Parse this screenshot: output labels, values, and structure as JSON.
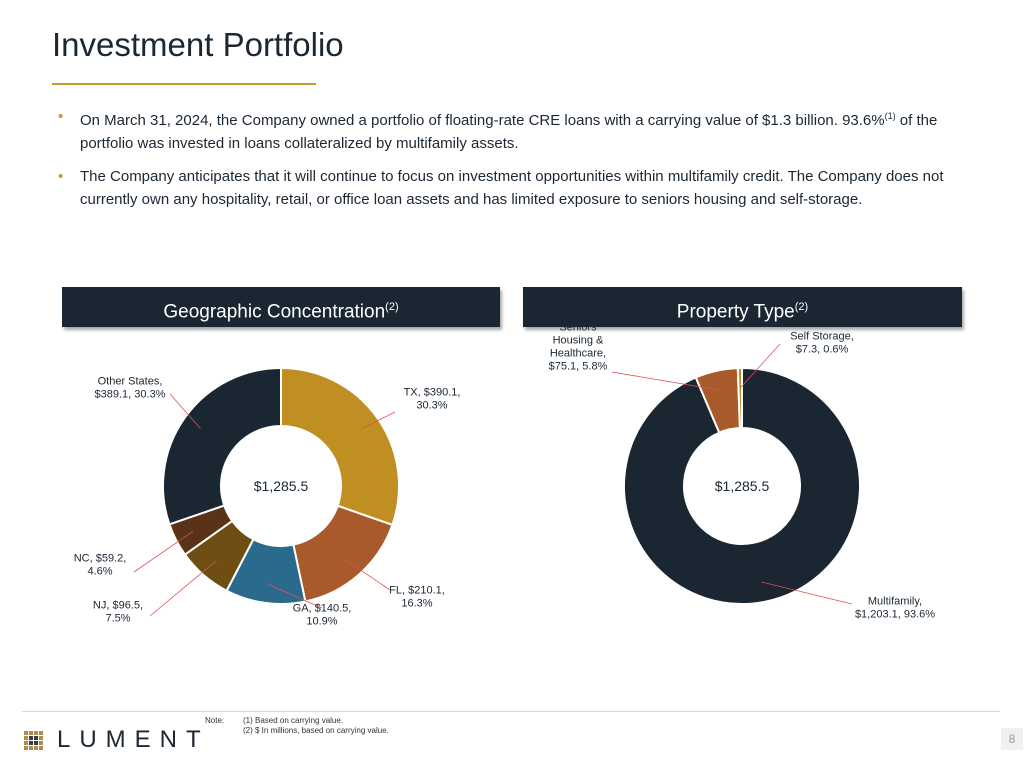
{
  "title": "Investment Portfolio",
  "bullets": {
    "b1_part1": "On March 31, 2024, the Company owned a portfolio of floating-rate CRE loans with a carrying value of $1.3 billion. 93.6%",
    "b1_sup": "(1)",
    "b1_part2": " of the portfolio was invested in loans collateralized by multifamily assets.",
    "b2": "The Company anticipates that it will continue to focus on investment opportunities within multifamily credit. The Company does not currently own any hospitality, retail, or office loan assets and has limited exposure to seniors housing and self-storage."
  },
  "panels": {
    "geo_title": "Geographic Concentration",
    "geo_sup": "(2)",
    "prop_title": "Property Type",
    "prop_sup": "(2)"
  },
  "chart_data": [
    {
      "type": "pie",
      "title": "Geographic Concentration",
      "center_label": "$1,285.5",
      "unit": "$ millions",
      "slices": [
        {
          "label": "TX",
          "value": 390.1,
          "percent": 30.3,
          "color": "#c08f24",
          "label_lines": [
            "TX, $390.1,",
            "30.3%"
          ]
        },
        {
          "label": "FL",
          "value": 210.1,
          "percent": 16.3,
          "color": "#a95a2a",
          "label_lines": [
            "FL, $210.1,",
            "16.3%"
          ]
        },
        {
          "label": "GA",
          "value": 140.5,
          "percent": 10.9,
          "color": "#2a6a8c",
          "label_lines": [
            "GA, $140.5,",
            "10.9%"
          ]
        },
        {
          "label": "NJ",
          "value": 96.5,
          "percent": 7.5,
          "color": "#6e4e12",
          "label_lines": [
            "NJ, $96.5,",
            "7.5%"
          ]
        },
        {
          "label": "NC",
          "value": 59.2,
          "percent": 4.6,
          "color": "#5a3218",
          "label_lines": [
            "NC, $59.2,",
            "4.6%"
          ]
        },
        {
          "label": "Other States",
          "value": 389.1,
          "percent": 30.3,
          "color": "#1a2632",
          "label_lines": [
            "Other States,",
            "$389.1, 30.3%"
          ]
        }
      ]
    },
    {
      "type": "pie",
      "title": "Property Type",
      "center_label": "$1,285.5",
      "unit": "$ millions",
      "slices": [
        {
          "label": "Multifamily",
          "value": 1203.1,
          "percent": 93.6,
          "color": "#1a2632",
          "label_lines": [
            "Multifamily,",
            "$1,203.1, 93.6%"
          ]
        },
        {
          "label": "Seniors Housing & Healthcare",
          "value": 75.1,
          "percent": 5.8,
          "color": "#a95a2a",
          "label_lines": [
            "Seniors",
            "Housing &",
            "Healthcare,",
            "$75.1, 5.8%"
          ]
        },
        {
          "label": "Self Storage",
          "value": 7.3,
          "percent": 0.6,
          "color": "#c08f24",
          "label_lines": [
            "Self Storage,",
            "$7.3, 0.6%"
          ]
        }
      ]
    }
  ],
  "footer": {
    "logo_text": "LUMENT",
    "note_label": "Note:",
    "note1": "(1) Based on carrying value.",
    "note2": "(2) $ In millions, based on carrying value.",
    "page_number": "8"
  }
}
